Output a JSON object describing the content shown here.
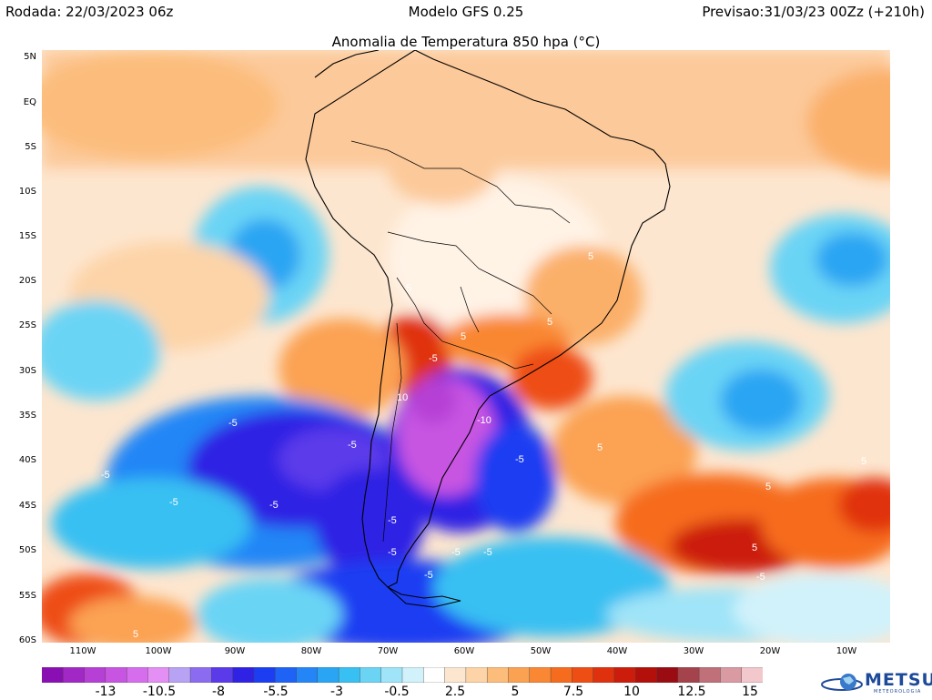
{
  "header": {
    "run": "Rodada: 22/03/2023 06z",
    "model": "Modelo GFS 0.25",
    "forecast": "Previsao:31/03/23 00Zz (+210h)",
    "title": "Anomalia de Temperatura 850 hpa (°C)"
  },
  "map": {
    "lat_labels": [
      "5N",
      "EQ",
      "5S",
      "10S",
      "15S",
      "20S",
      "25S",
      "30S",
      "35S",
      "40S",
      "45S",
      "50S",
      "55S",
      "60S"
    ],
    "lon_labels": [
      "110W",
      "100W",
      "90W",
      "80W",
      "70W",
      "60W",
      "50W",
      "40W",
      "30W",
      "20W",
      "10W"
    ],
    "contour_labels": [
      "5",
      "5",
      "5",
      "5",
      "5",
      "10",
      "-5",
      "-10",
      "-5",
      "-5",
      "-5",
      "-5",
      "-5",
      "-5",
      "-5",
      "-5",
      "-5",
      "-5",
      "-5",
      "5",
      "5",
      "5",
      "-5",
      "5"
    ]
  },
  "colorbar": {
    "colors": [
      "#8a0fb3",
      "#a128c5",
      "#b63fd5",
      "#c755e2",
      "#d66ded",
      "#e38ff4",
      "#b8a2f3",
      "#8b6cf0",
      "#5b3aea",
      "#2f22e4",
      "#1c3ef2",
      "#1f63f6",
      "#2486f6",
      "#2aa5f3",
      "#39c0f2",
      "#6bd4f5",
      "#9fe4f8",
      "#d1f2fb",
      "#ffffff",
      "#fde6cf",
      "#fdd4a8",
      "#fcbd7b",
      "#fba252",
      "#f98733",
      "#f66c1f",
      "#ee4d14",
      "#e0310e",
      "#cc1d0c",
      "#b3100c",
      "#9a0c12",
      "#a4434b",
      "#c07079",
      "#d99aa2",
      "#f2c8cd"
    ],
    "ticks": [
      "-13",
      "-10.5",
      "-8",
      "-5.5",
      "-3",
      "-0.5",
      "2.5",
      "5",
      "7.5",
      "10",
      "12.5",
      "15"
    ]
  },
  "logo": {
    "name": "METSUL",
    "sub": "METEOROLOGIA"
  }
}
